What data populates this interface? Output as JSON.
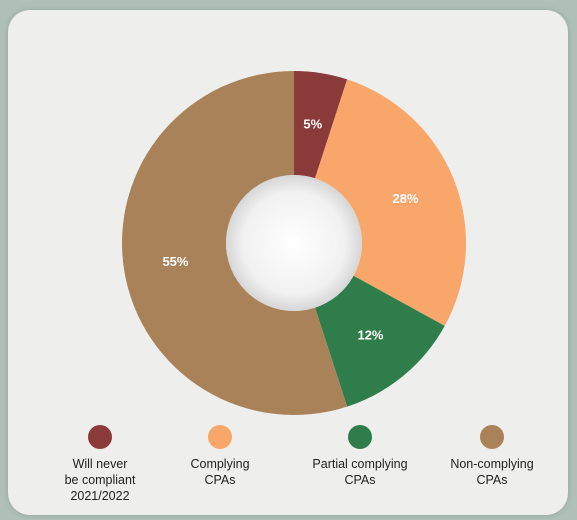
{
  "chart_data": {
    "type": "pie",
    "donut": true,
    "labels": [
      "Will never\nbe compliant\n2021/2022",
      "Complying\nCPAs",
      "Partial complying\nCPAs",
      "Non-complying\nCPAs"
    ],
    "values": [
      5,
      28,
      12,
      55
    ],
    "data_labels": [
      "5%",
      "28%",
      "12%",
      "55%"
    ],
    "colors": [
      "#8b3a3a",
      "#f9a66a",
      "#2f7d4a",
      "#a9825a"
    ],
    "legend_position": "bottom"
  }
}
